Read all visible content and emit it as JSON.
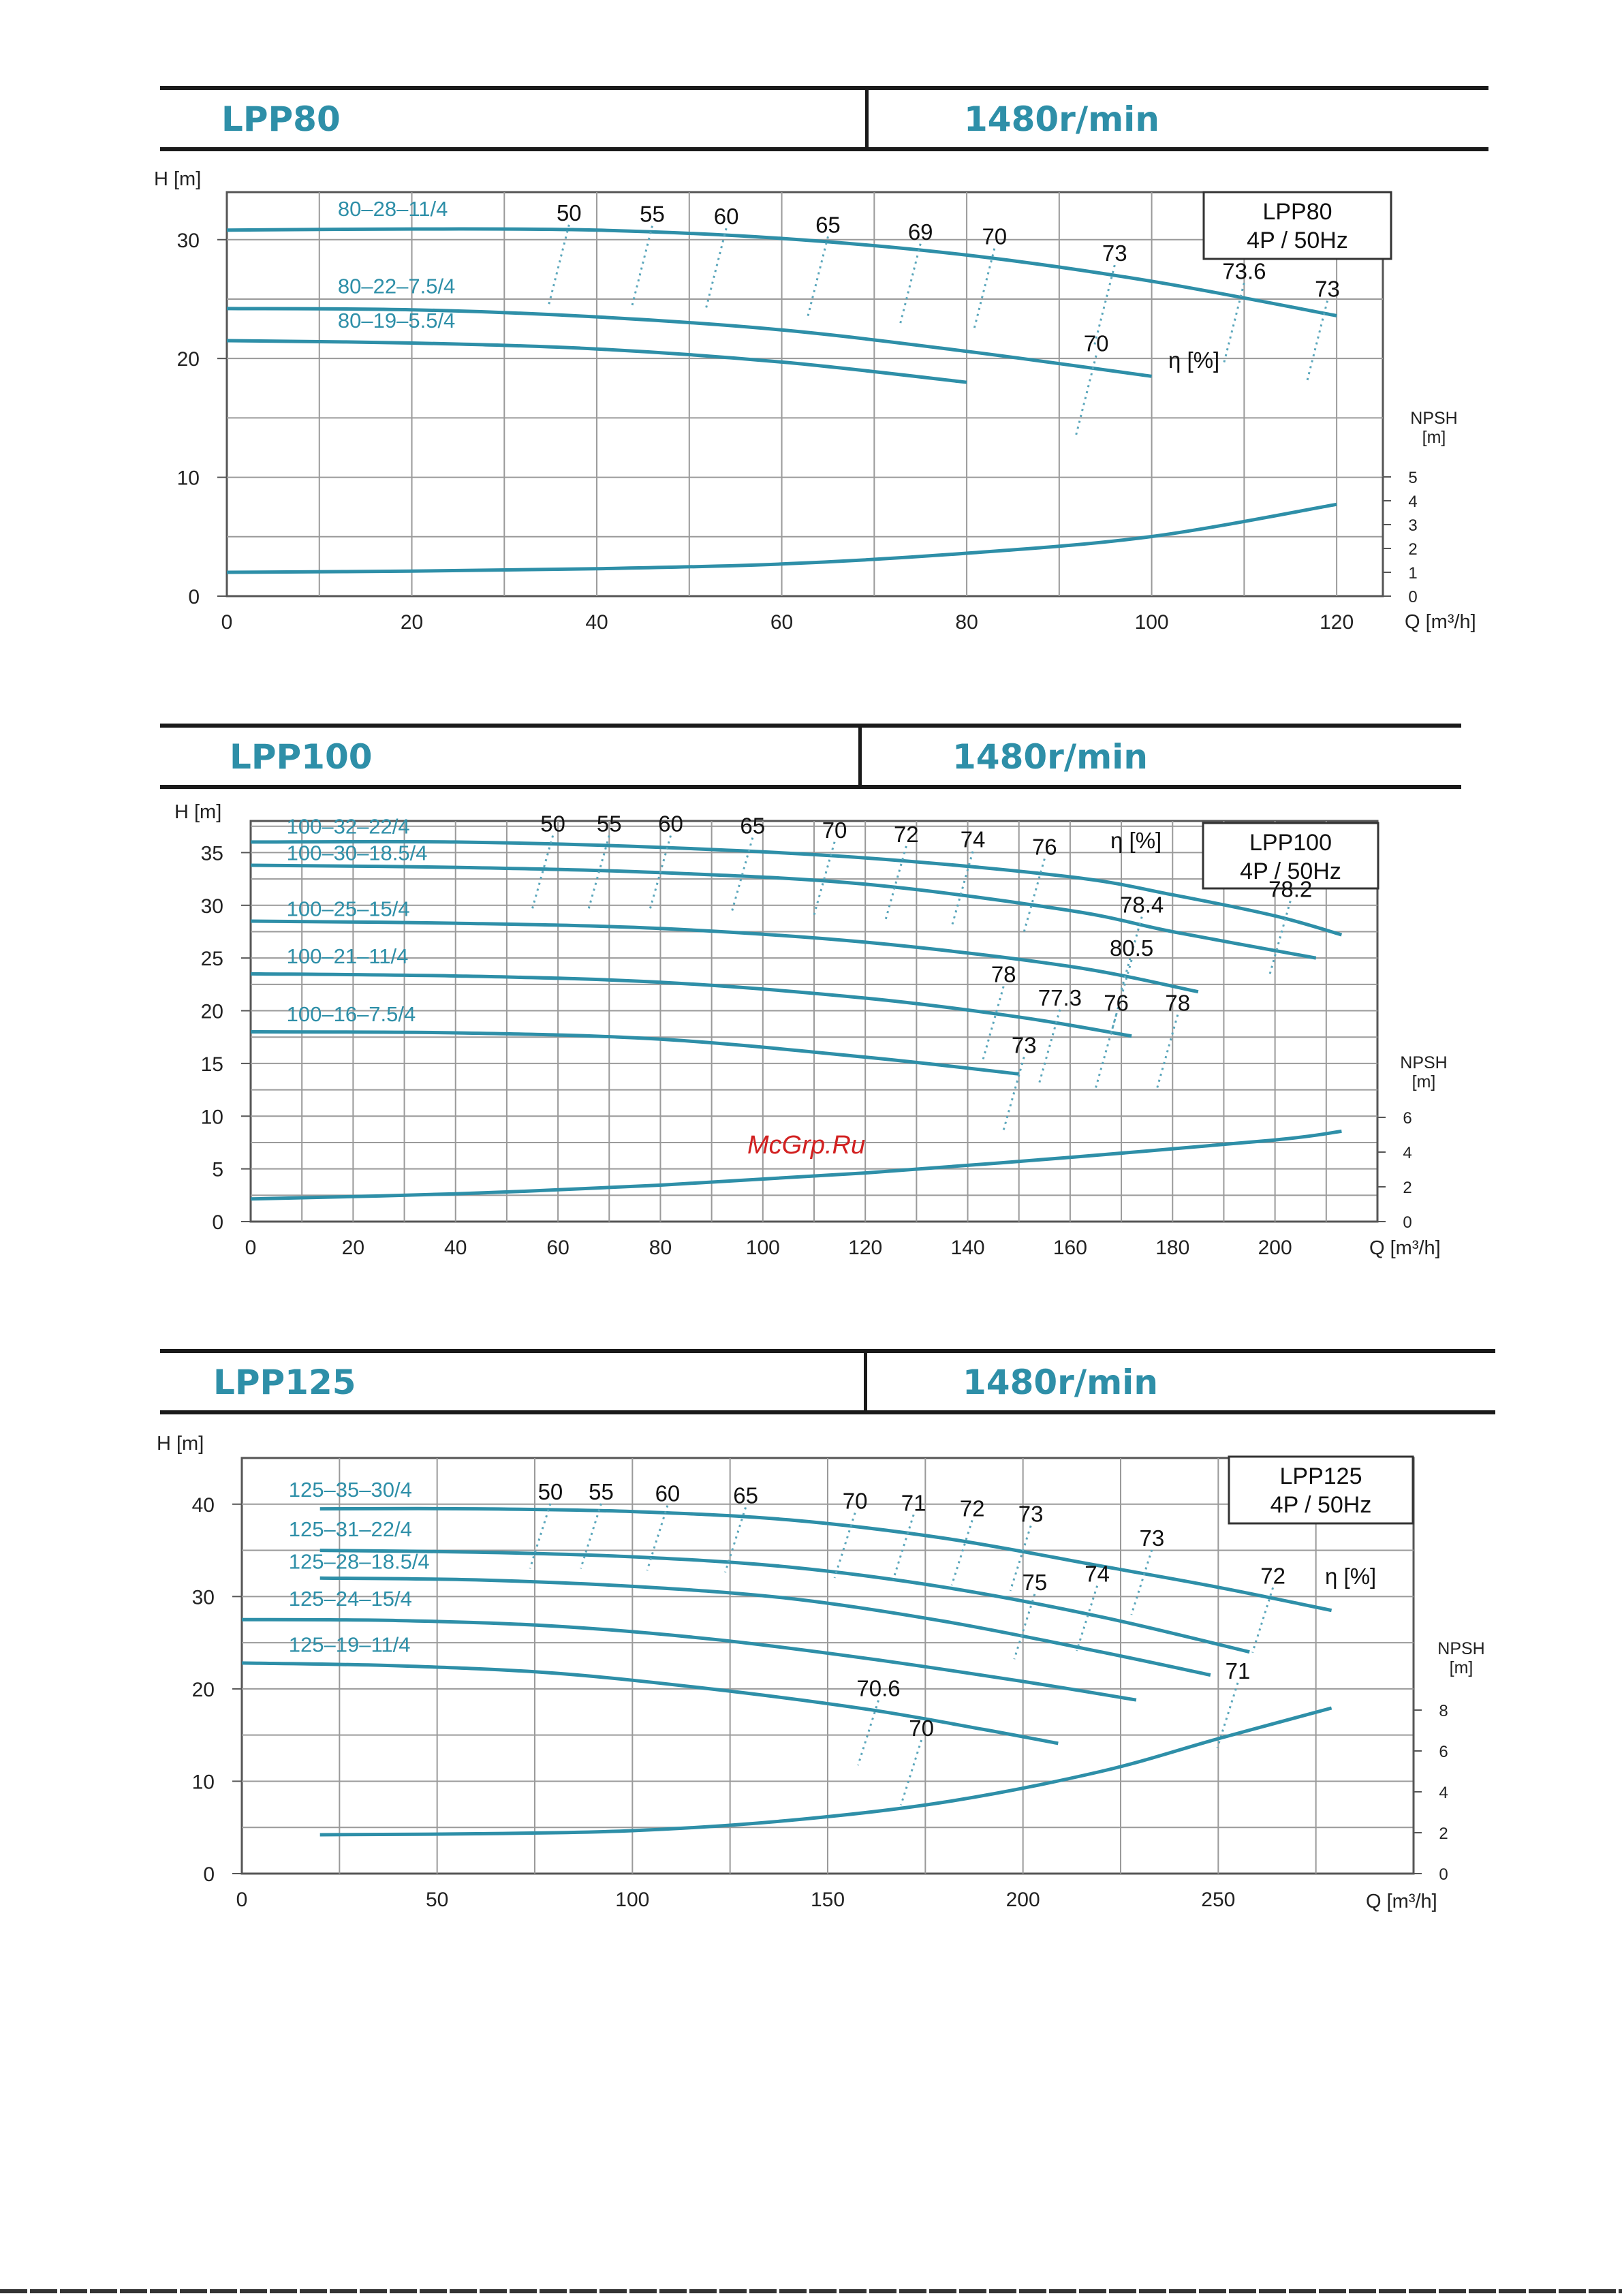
{
  "watermark": "McGrp.Ru",
  "charts": [
    {
      "model": "LPP80",
      "speed": "1480r/min",
      "legend_lines": [
        "LPP80",
        "4P / 50Hz"
      ],
      "eta_label": "η [%]",
      "npsh_label": [
        "NPSH",
        "[m]"
      ],
      "y_label": "H [m]",
      "x_label": "Q [m³/h]"
    },
    {
      "model": "LPP100",
      "speed": "1480r/min",
      "legend_lines": [
        "LPP100",
        "4P / 50Hz"
      ],
      "eta_label": "η [%]",
      "npsh_label": [
        "NPSH",
        "[m]"
      ],
      "y_label": "H [m]",
      "x_label": "Q [m³/h]"
    },
    {
      "model": "LPP125",
      "speed": "1480r/min",
      "legend_lines": [
        "LPP125",
        "4P / 50Hz"
      ],
      "eta_label": "η [%]",
      "npsh_label": [
        "NPSH",
        "[m]"
      ],
      "y_label": "H [m]",
      "x_label": "Q [m³/h]"
    }
  ],
  "chart_data": [
    {
      "type": "line",
      "title": "LPP80",
      "xlabel": "Q [m³/h]",
      "ylabel": "H [m]",
      "xlim": [
        0,
        125
      ],
      "ylim": [
        0,
        34
      ],
      "x_ticks": [
        "0",
        "20",
        "40",
        "60",
        "80",
        "100",
        "120"
      ],
      "x_tick_values": [
        0,
        20,
        40,
        60,
        80,
        100,
        120
      ],
      "y_ticks": [
        "0",
        "10",
        "20",
        "30"
      ],
      "y_tick_values": [
        0,
        10,
        20,
        30
      ],
      "npsh_ticks": [
        "0",
        "1",
        "2",
        "3",
        "4",
        "5"
      ],
      "npsh_tick_values": [
        0,
        1,
        2,
        3,
        4,
        5
      ],
      "npsh_scale_max": 5,
      "grid": true,
      "accent_color": "#2e8fa8",
      "series": [
        {
          "name": "80–28–11/4",
          "x": [
            0,
            20,
            40,
            60,
            80,
            100,
            120
          ],
          "y": [
            30.8,
            30.9,
            30.8,
            30.1,
            28.7,
            26.5,
            23.6
          ]
        },
        {
          "name": "80–22–7.5/4",
          "x": [
            0,
            20,
            40,
            60,
            80,
            100
          ],
          "y": [
            24.2,
            24.1,
            23.5,
            22.4,
            20.6,
            18.5
          ]
        },
        {
          "name": "80–19–5.5/4",
          "x": [
            0,
            20,
            40,
            60,
            80
          ],
          "y": [
            21.5,
            21.3,
            20.8,
            19.7,
            18.0
          ]
        }
      ],
      "npsh": {
        "x": [
          0,
          20,
          40,
          60,
          80,
          100,
          120
        ],
        "y": [
          1.0,
          1.05,
          1.15,
          1.35,
          1.8,
          2.5,
          3.85
        ]
      },
      "efficiency_labels": [
        {
          "text": "50",
          "x": 37,
          "y": 31.6
        },
        {
          "text": "55",
          "x": 46,
          "y": 31.5
        },
        {
          "text": "60",
          "x": 54,
          "y": 31.3
        },
        {
          "text": "65",
          "x": 65,
          "y": 30.6
        },
        {
          "text": "69",
          "x": 75,
          "y": 30.0
        },
        {
          "text": "70",
          "x": 83,
          "y": 29.6
        },
        {
          "text": "73",
          "x": 96,
          "y": 28.2
        },
        {
          "text": "73.6",
          "x": 110,
          "y": 26.7
        },
        {
          "text": "73",
          "x": 119,
          "y": 25.2
        },
        {
          "text": "70",
          "x": 94,
          "y": 20.6
        }
      ],
      "series_labels": [
        {
          "text": "80–28–11/4",
          "x": 12,
          "y": 32.0
        },
        {
          "text": "80–22–7.5/4",
          "x": 12,
          "y": 25.5
        },
        {
          "text": "80–19–5.5/4",
          "x": 12,
          "y": 22.6
        }
      ]
    },
    {
      "type": "line",
      "title": "LPP100",
      "xlabel": "Q [m³/h]",
      "ylabel": "H [m]",
      "xlim": [
        0,
        220
      ],
      "ylim": [
        0,
        38
      ],
      "x_ticks": [
        "0",
        "20",
        "40",
        "60",
        "80",
        "100",
        "120",
        "140",
        "160",
        "180",
        "200"
      ],
      "x_tick_values": [
        0,
        20,
        40,
        60,
        80,
        100,
        120,
        140,
        160,
        180,
        200
      ],
      "y_ticks": [
        "0",
        "5",
        "10",
        "15",
        "20",
        "25",
        "30",
        "35"
      ],
      "y_tick_values": [
        0,
        5,
        10,
        15,
        20,
        25,
        30,
        35
      ],
      "npsh_ticks": [
        "0",
        "2",
        "4",
        "6"
      ],
      "npsh_tick_values": [
        0,
        2,
        4,
        6
      ],
      "npsh_scale_max": 6,
      "grid": true,
      "accent_color": "#2e8fa8",
      "series": [
        {
          "name": "100–32–22/4",
          "x": [
            0,
            40,
            80,
            120,
            160,
            180,
            200,
            213
          ],
          "y": [
            36.0,
            36.0,
            35.5,
            34.5,
            32.7,
            31.0,
            29.0,
            27.2
          ]
        },
        {
          "name": "100–30–18.5/4",
          "x": [
            0,
            40,
            80,
            120,
            160,
            180,
            208
          ],
          "y": [
            33.8,
            33.6,
            33.1,
            32.0,
            29.5,
            27.5,
            25.0
          ]
        },
        {
          "name": "100–25–15/4",
          "x": [
            0,
            40,
            80,
            120,
            160,
            185
          ],
          "y": [
            28.5,
            28.3,
            27.8,
            26.5,
            24.2,
            21.8
          ]
        },
        {
          "name": "100–21–11/4",
          "x": [
            0,
            40,
            80,
            120,
            150,
            172
          ],
          "y": [
            23.5,
            23.3,
            22.7,
            21.2,
            19.4,
            17.6
          ]
        },
        {
          "name": "100–16–7.5/4",
          "x": [
            0,
            40,
            80,
            120,
            150
          ],
          "y": [
            18.0,
            17.9,
            17.3,
            15.6,
            14.0
          ]
        }
      ],
      "npsh": {
        "x": [
          0,
          40,
          80,
          120,
          160,
          200,
          213
        ],
        "y": [
          1.3,
          1.6,
          2.1,
          2.8,
          3.7,
          4.7,
          5.2
        ]
      },
      "efficiency_labels": [
        {
          "text": "50",
          "x": 59,
          "y": 37.0
        },
        {
          "text": "55",
          "x": 70,
          "y": 37.0
        },
        {
          "text": "60",
          "x": 82,
          "y": 37.0
        },
        {
          "text": "65",
          "x": 98,
          "y": 36.8
        },
        {
          "text": "70",
          "x": 114,
          "y": 36.4
        },
        {
          "text": "72",
          "x": 128,
          "y": 36.0
        },
        {
          "text": "74",
          "x": 141,
          "y": 35.5
        },
        {
          "text": "76",
          "x": 155,
          "y": 34.8
        },
        {
          "text": "78.2",
          "x": 203,
          "y": 30.8
        },
        {
          "text": "78.4",
          "x": 174,
          "y": 29.3
        },
        {
          "text": "80.5",
          "x": 172,
          "y": 25.2
        },
        {
          "text": "78",
          "x": 147,
          "y": 22.7
        },
        {
          "text": "77.3",
          "x": 158,
          "y": 20.5
        },
        {
          "text": "76",
          "x": 169,
          "y": 20.0
        },
        {
          "text": "78",
          "x": 181,
          "y": 20.0
        },
        {
          "text": "73",
          "x": 151,
          "y": 16.0
        }
      ],
      "series_labels": [
        {
          "text": "100–32–22/4",
          "x": 7,
          "y": 36.8
        },
        {
          "text": "100–30–18.5/4",
          "x": 7,
          "y": 34.3
        },
        {
          "text": "100–25–15/4",
          "x": 7,
          "y": 29.0
        },
        {
          "text": "100–21–11/4",
          "x": 7,
          "y": 24.5
        },
        {
          "text": "100–16–7.5/4",
          "x": 7,
          "y": 19.0
        }
      ]
    },
    {
      "type": "line",
      "title": "LPP125",
      "xlabel": "Q [m³/h]",
      "ylabel": "H [m]",
      "xlim": [
        0,
        300
      ],
      "ylim": [
        0,
        45
      ],
      "x_ticks": [
        "0",
        "50",
        "100",
        "150",
        "200",
        "250"
      ],
      "x_tick_values": [
        0,
        50,
        100,
        150,
        200,
        250
      ],
      "y_ticks": [
        "0",
        "10",
        "20",
        "30",
        "40"
      ],
      "y_tick_values": [
        0,
        10,
        20,
        30,
        40
      ],
      "npsh_ticks": [
        "0",
        "2",
        "4",
        "6",
        "8"
      ],
      "npsh_tick_values": [
        0,
        2,
        4,
        6,
        8
      ],
      "npsh_scale_max": 8,
      "grid": true,
      "accent_color": "#2e8fa8",
      "series": [
        {
          "name": "125–35–30/4",
          "x": [
            20,
            60,
            100,
            140,
            180,
            220,
            250,
            279
          ],
          "y": [
            39.5,
            39.5,
            39.2,
            38.3,
            36.3,
            33.3,
            31.0,
            28.5
          ]
        },
        {
          "name": "125–31–22/4",
          "x": [
            20,
            60,
            100,
            140,
            180,
            220,
            258
          ],
          "y": [
            35.0,
            34.8,
            34.3,
            33.2,
            31.0,
            27.8,
            24.0
          ]
        },
        {
          "name": "125–28–18.5/4",
          "x": [
            20,
            60,
            100,
            140,
            180,
            220,
            248
          ],
          "y": [
            32.0,
            31.8,
            31.1,
            29.8,
            27.3,
            24.0,
            21.5
          ]
        },
        {
          "name": "125–24–15/4",
          "x": [
            0,
            40,
            80,
            120,
            160,
            200,
            229
          ],
          "y": [
            27.5,
            27.4,
            26.8,
            25.4,
            23.3,
            20.8,
            18.8
          ]
        },
        {
          "name": "125–19–11/4",
          "x": [
            0,
            40,
            80,
            120,
            160,
            190,
            209
          ],
          "y": [
            22.8,
            22.5,
            21.7,
            20.0,
            17.8,
            15.6,
            14.1
          ]
        }
      ],
      "npsh": {
        "x": [
          20,
          60,
          100,
          140,
          180,
          220,
          250,
          279
        ],
        "y": [
          1.9,
          1.95,
          2.1,
          2.6,
          3.5,
          5.0,
          6.6,
          8.1
        ]
      },
      "efficiency_labels": [
        {
          "text": "50",
          "x": 79,
          "y": 40.5
        },
        {
          "text": "55",
          "x": 92,
          "y": 40.5
        },
        {
          "text": "60",
          "x": 109,
          "y": 40.3
        },
        {
          "text": "65",
          "x": 129,
          "y": 40.1
        },
        {
          "text": "70",
          "x": 157,
          "y": 39.5
        },
        {
          "text": "71",
          "x": 172,
          "y": 39.3
        },
        {
          "text": "72",
          "x": 187,
          "y": 38.7
        },
        {
          "text": "73",
          "x": 202,
          "y": 38.1
        },
        {
          "text": "73",
          "x": 233,
          "y": 35.5
        },
        {
          "text": "74",
          "x": 219,
          "y": 31.6
        },
        {
          "text": "75",
          "x": 203,
          "y": 30.7
        },
        {
          "text": "72",
          "x": 264,
          "y": 31.4
        },
        {
          "text": "71",
          "x": 255,
          "y": 21.1
        },
        {
          "text": "70.6",
          "x": 163,
          "y": 19.2
        },
        {
          "text": "70",
          "x": 174,
          "y": 14.9
        }
      ],
      "series_labels": [
        {
          "text": "125–35–30/4",
          "x": 12,
          "y": 40.8
        },
        {
          "text": "125–31–22/4",
          "x": 12,
          "y": 36.5
        },
        {
          "text": "125–28–18.5/4",
          "x": 12,
          "y": 33.0
        },
        {
          "text": "125–24–15/4",
          "x": 12,
          "y": 29.0
        },
        {
          "text": "125–19–11/4",
          "x": 12,
          "y": 24.0
        }
      ]
    }
  ]
}
